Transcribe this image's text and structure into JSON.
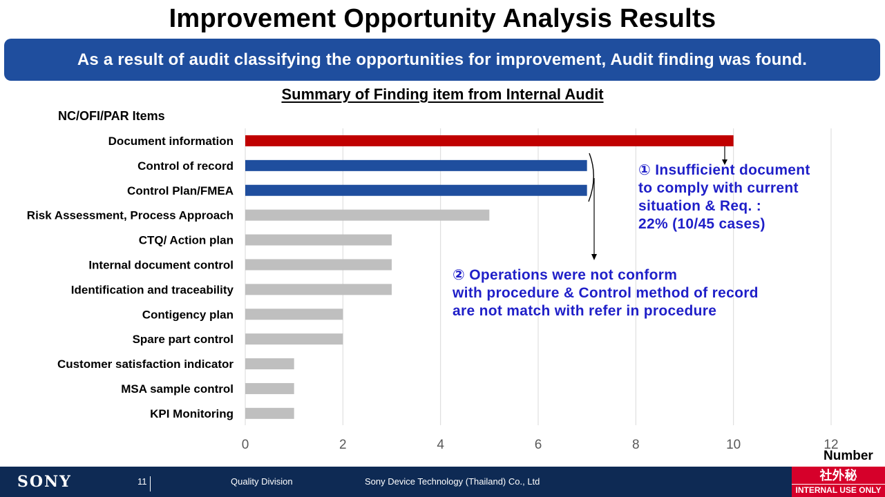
{
  "title": "Improvement Opportunity Analysis Results",
  "banner": "As a result of audit classifying the opportunities for improvement, Audit finding was found.",
  "chart_data": {
    "type": "bar",
    "orientation": "horizontal",
    "title": "Summary of Finding item from Internal Audit",
    "ylabel": "NC/OFI/PAR Items",
    "xlabel": "Number",
    "categories": [
      "Document information",
      "Control of record",
      "Control Plan/FMEA",
      "Risk Assessment, Process Approach",
      "CTQ/ Action plan",
      "Internal document control",
      "Identification and traceability",
      "Contigency plan",
      "Spare part control",
      "Customer satisfaction indicator",
      "MSA sample control",
      "KPI Monitoring"
    ],
    "values": [
      10,
      7,
      7,
      5,
      3,
      3,
      3,
      2,
      2,
      1,
      1,
      1
    ],
    "bar_colors": [
      "#c00000",
      "#1f4e9e",
      "#1f4e9e",
      "#bfbfbf",
      "#bfbfbf",
      "#bfbfbf",
      "#bfbfbf",
      "#bfbfbf",
      "#bfbfbf",
      "#bfbfbf",
      "#bfbfbf",
      "#bfbfbf"
    ],
    "xlim": [
      0,
      12
    ],
    "xticks": [
      0,
      2,
      4,
      6,
      8,
      10,
      12
    ],
    "grid": "vertical gridlines"
  },
  "annotations": {
    "note1": [
      "① Insufficient  document",
      "to comply with current",
      "situation & Req. :",
      "22% (10/45 cases)"
    ],
    "note2": [
      "② Operations were not conform",
      "with procedure & Control method of record",
      "are not match with refer in procedure"
    ]
  },
  "colors": {
    "accent_blue": "#1f4e9e",
    "accent_red": "#c00000",
    "note_text": "#1f1fc8",
    "footer": "#0e2a54"
  },
  "footer": {
    "logo": "SONY",
    "page": "11",
    "division": "Quality Division",
    "company": "Sony Device Technology (Thailand) Co., Ltd",
    "badge_jp": "社外秘",
    "badge_en": "INTERNAL USE ONLY"
  }
}
